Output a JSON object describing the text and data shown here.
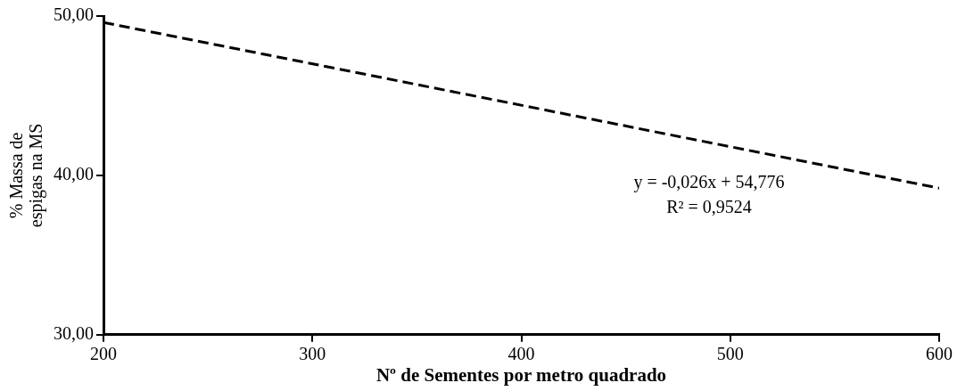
{
  "chart_data": {
    "type": "line",
    "xlabel": "Nº de Sementes por metro quadrado",
    "ylabel": "% Massa de espigas na MS",
    "x": [
      200,
      600
    ],
    "series": [
      {
        "color": "#000000",
        "values": [
          49.6,
          39.2
        ]
      }
    ],
    "xlim": [
      200,
      600
    ],
    "xticks": [
      200,
      300,
      400,
      500,
      600
    ],
    "ylim": [
      30,
      50
    ],
    "yticks": [
      {
        "value": 30,
        "label": "30,00"
      },
      {
        "value": 40,
        "label": "40,00"
      },
      {
        "value": 50,
        "label": "50,00"
      }
    ],
    "line_style": "dashed",
    "marker": "none",
    "grid": false,
    "legend": false,
    "annotations": [
      "y = -0,026x + 54,776",
      "R² = 0,9524"
    ]
  }
}
